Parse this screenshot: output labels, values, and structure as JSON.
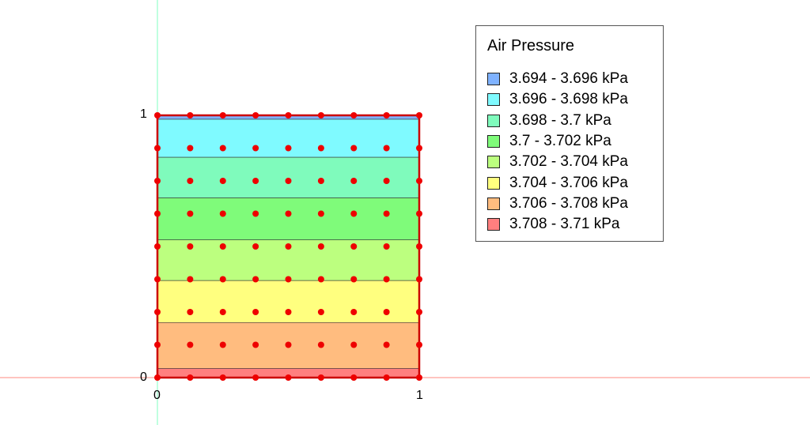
{
  "legend": {
    "title": "Air Pressure",
    "items": [
      {
        "label": "3.694 - 3.696 kPa",
        "color": "#7fb2ff"
      },
      {
        "label": "3.696 - 3.698 kPa",
        "color": "#7ffaff"
      },
      {
        "label": "3.698 - 3.7 kPa",
        "color": "#7ffbbc"
      },
      {
        "label": "3.7 - 3.702 kPa",
        "color": "#7ffb7a"
      },
      {
        "label": "3.702 - 3.704 kPa",
        "color": "#bcff7f"
      },
      {
        "label": "3.704 - 3.706 kPa",
        "color": "#ffff7f"
      },
      {
        "label": "3.706 - 3.708 kPa",
        "color": "#ffbc7f"
      },
      {
        "label": "3.708 - 3.71 kPa",
        "color": "#ff7f7f"
      }
    ]
  },
  "axes": {
    "x_ticks": [
      "0",
      "1"
    ],
    "y_ticks": [
      "0",
      "1"
    ]
  },
  "domain": {
    "xlim": [
      0,
      1
    ],
    "ylim": [
      0,
      1
    ],
    "bands": [
      {
        "y_from": 0.985,
        "y_to": 1.0,
        "color": "#7fb2ff"
      },
      {
        "y_from": 0.84,
        "y_to": 0.985,
        "color": "#7ffaff"
      },
      {
        "y_from": 0.685,
        "y_to": 0.84,
        "color": "#7ffbbc"
      },
      {
        "y_from": 0.525,
        "y_to": 0.685,
        "color": "#7ffb7a"
      },
      {
        "y_from": 0.37,
        "y_to": 0.525,
        "color": "#bcff7f"
      },
      {
        "y_from": 0.21,
        "y_to": 0.37,
        "color": "#ffff7f"
      },
      {
        "y_from": 0.035,
        "y_to": 0.21,
        "color": "#ffbc7f"
      },
      {
        "y_from": 0.0,
        "y_to": 0.035,
        "color": "#ff7f7f"
      }
    ],
    "node_grid": {
      "nx": 9,
      "ny": 9
    },
    "node_color": "#ee0000",
    "boundary_color": "#cc0000",
    "x_axis_line_color": "#ff8a80",
    "y_axis_line_color": "#80ffc0"
  }
}
